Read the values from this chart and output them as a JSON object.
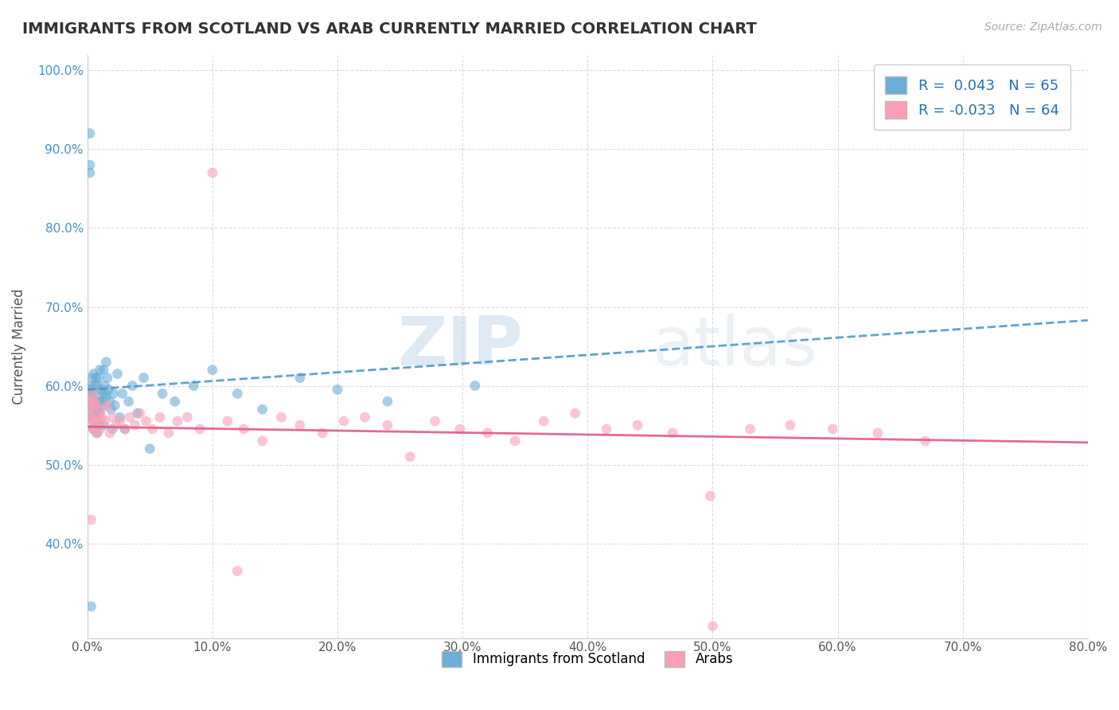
{
  "title": "IMMIGRANTS FROM SCOTLAND VS ARAB CURRENTLY MARRIED CORRELATION CHART",
  "source": "Source: ZipAtlas.com",
  "xlabel": "",
  "ylabel": "Currently Married",
  "legend_label1": "Immigrants from Scotland",
  "legend_label2": "Arabs",
  "r1": 0.043,
  "n1": 65,
  "r2": -0.033,
  "n2": 64,
  "xlim": [
    0.0,
    0.8
  ],
  "ylim": [
    0.28,
    1.02
  ],
  "xticks": [
    0.0,
    0.1,
    0.2,
    0.3,
    0.4,
    0.5,
    0.6,
    0.7,
    0.8
  ],
  "yticks": [
    0.4,
    0.5,
    0.6,
    0.7,
    0.8,
    0.9,
    1.0
  ],
  "xtick_labels": [
    "0.0%",
    "10.0%",
    "20.0%",
    "30.0%",
    "40.0%",
    "50.0%",
    "60.0%",
    "70.0%",
    "80.0%"
  ],
  "ytick_labels": [
    "40.0%",
    "50.0%",
    "60.0%",
    "70.0%",
    "80.0%",
    "90.0%",
    "100.0%"
  ],
  "color_blue": "#6baed6",
  "color_pink": "#fa9fb5",
  "trendline_blue": "#4292c6",
  "trendline_pink": "#e05a8a",
  "background_color": "#ffffff",
  "watermark_zip": "ZIP",
  "watermark_atlas": "atlas",
  "trendline_slope1": 0.11,
  "trendline_intercept1": 0.595,
  "trendline_slope2": -0.025,
  "trendline_intercept2": 0.548,
  "scotland_x": [
    0.001,
    0.002,
    0.002,
    0.003,
    0.003,
    0.003,
    0.004,
    0.004,
    0.004,
    0.005,
    0.005,
    0.005,
    0.005,
    0.006,
    0.006,
    0.006,
    0.007,
    0.007,
    0.007,
    0.008,
    0.008,
    0.008,
    0.009,
    0.009,
    0.01,
    0.01,
    0.01,
    0.011,
    0.011,
    0.012,
    0.012,
    0.013,
    0.013,
    0.014,
    0.014,
    0.015,
    0.015,
    0.016,
    0.017,
    0.018,
    0.019,
    0.02,
    0.021,
    0.022,
    0.024,
    0.026,
    0.028,
    0.03,
    0.033,
    0.036,
    0.04,
    0.045,
    0.05,
    0.06,
    0.07,
    0.085,
    0.1,
    0.12,
    0.14,
    0.17,
    0.2,
    0.24,
    0.31,
    0.002,
    0.003
  ],
  "scotland_y": [
    0.595,
    0.88,
    0.87,
    0.59,
    0.6,
    0.57,
    0.58,
    0.56,
    0.61,
    0.59,
    0.555,
    0.545,
    0.615,
    0.575,
    0.565,
    0.6,
    0.58,
    0.61,
    0.56,
    0.54,
    0.57,
    0.6,
    0.55,
    0.61,
    0.565,
    0.58,
    0.62,
    0.595,
    0.58,
    0.59,
    0.575,
    0.55,
    0.62,
    0.59,
    0.6,
    0.63,
    0.585,
    0.61,
    0.595,
    0.58,
    0.57,
    0.545,
    0.59,
    0.575,
    0.615,
    0.56,
    0.59,
    0.545,
    0.58,
    0.6,
    0.565,
    0.61,
    0.52,
    0.59,
    0.58,
    0.6,
    0.62,
    0.59,
    0.57,
    0.61,
    0.595,
    0.58,
    0.6,
    0.92,
    0.32
  ],
  "arab_x": [
    0.001,
    0.002,
    0.003,
    0.003,
    0.004,
    0.004,
    0.005,
    0.005,
    0.006,
    0.006,
    0.007,
    0.007,
    0.008,
    0.009,
    0.01,
    0.011,
    0.012,
    0.014,
    0.016,
    0.018,
    0.02,
    0.023,
    0.026,
    0.03,
    0.034,
    0.038,
    0.042,
    0.047,
    0.052,
    0.058,
    0.065,
    0.072,
    0.08,
    0.09,
    0.1,
    0.112,
    0.125,
    0.14,
    0.155,
    0.17,
    0.188,
    0.205,
    0.222,
    0.24,
    0.258,
    0.278,
    0.298,
    0.32,
    0.342,
    0.365,
    0.39,
    0.415,
    0.44,
    0.468,
    0.498,
    0.53,
    0.562,
    0.596,
    0.632,
    0.67,
    0.003,
    0.005,
    0.12,
    0.5
  ],
  "arab_y": [
    0.565,
    0.58,
    0.555,
    0.575,
    0.56,
    0.59,
    0.545,
    0.57,
    0.58,
    0.555,
    0.54,
    0.575,
    0.56,
    0.555,
    0.545,
    0.57,
    0.56,
    0.555,
    0.575,
    0.54,
    0.56,
    0.55,
    0.555,
    0.545,
    0.56,
    0.55,
    0.565,
    0.555,
    0.545,
    0.56,
    0.54,
    0.555,
    0.56,
    0.545,
    0.87,
    0.555,
    0.545,
    0.53,
    0.56,
    0.55,
    0.54,
    0.555,
    0.56,
    0.55,
    0.51,
    0.555,
    0.545,
    0.54,
    0.53,
    0.555,
    0.565,
    0.545,
    0.55,
    0.54,
    0.46,
    0.545,
    0.55,
    0.545,
    0.54,
    0.53,
    0.43,
    0.545,
    0.365,
    0.295
  ]
}
